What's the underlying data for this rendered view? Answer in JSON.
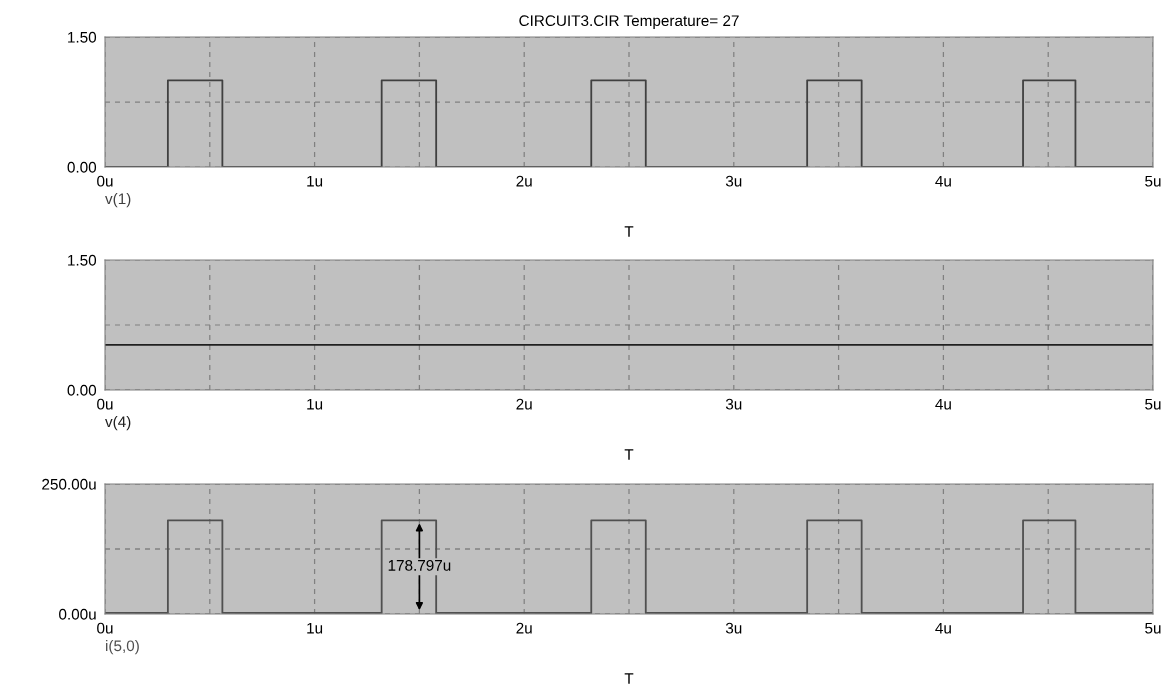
{
  "chart_data": [
    {
      "type": "step",
      "title": "CIRCUIT3.CIR Temperature= 27",
      "xlabel": "T",
      "xlim": [
        0,
        5
      ],
      "ylim": [
        0,
        1.5
      ],
      "xticks": [
        {
          "value": 0,
          "label": "0u"
        },
        {
          "value": 0.5,
          "label": null
        },
        {
          "value": 1,
          "label": "1u"
        },
        {
          "value": 1.5,
          "label": null
        },
        {
          "value": 2,
          "label": "2u"
        },
        {
          "value": 2.5,
          "label": null
        },
        {
          "value": 3,
          "label": "3u"
        },
        {
          "value": 3.5,
          "label": null
        },
        {
          "value": 4,
          "label": "4u"
        },
        {
          "value": 4.5,
          "label": null
        },
        {
          "value": 5,
          "label": "5u"
        }
      ],
      "yticks": [
        {
          "value": 0,
          "label": "0.00"
        },
        {
          "value": 0.75,
          "label": null
        },
        {
          "value": 1.5,
          "label": "1.50"
        }
      ],
      "grid": true,
      "series": [
        {
          "color": "#404040",
          "name": "v(1)",
          "x": [
            0,
            0.3,
            0.56,
            1.32,
            1.58,
            2.32,
            2.58,
            3.35,
            3.61,
            4.38,
            4.63,
            5
          ],
          "values": [
            0,
            1.0,
            0,
            1.0,
            0,
            1.0,
            0,
            1.0,
            0,
            1.0,
            0,
            0
          ]
        }
      ],
      "legend": "bottom left"
    },
    {
      "type": "line",
      "xlabel": "T",
      "xlim": [
        0,
        5
      ],
      "ylim": [
        0,
        1.5
      ],
      "xticks": [
        {
          "value": 0,
          "label": "0u"
        },
        {
          "value": 0.5,
          "label": null
        },
        {
          "value": 1,
          "label": "1u"
        },
        {
          "value": 1.5,
          "label": null
        },
        {
          "value": 2,
          "label": "2u"
        },
        {
          "value": 2.5,
          "label": null
        },
        {
          "value": 3,
          "label": "3u"
        },
        {
          "value": 3.5,
          "label": null
        },
        {
          "value": 4,
          "label": "4u"
        },
        {
          "value": 4.5,
          "label": null
        },
        {
          "value": 5,
          "label": "5u"
        }
      ],
      "yticks": [
        {
          "value": 0,
          "label": "0.00"
        },
        {
          "value": 0.75,
          "label": null
        },
        {
          "value": 1.5,
          "label": "1.50"
        }
      ],
      "grid": true,
      "series": [
        {
          "color": "#202020",
          "name": "v(4)",
          "x": [
            0,
            5
          ],
          "values": [
            0.52,
            0.52
          ]
        }
      ],
      "legend": "bottom left"
    },
    {
      "type": "step",
      "xlabel": "T",
      "xlim": [
        0,
        5
      ],
      "ylim": [
        0,
        250
      ],
      "xticks": [
        {
          "value": 0,
          "label": "0u"
        },
        {
          "value": 0.5,
          "label": null
        },
        {
          "value": 1,
          "label": "1u"
        },
        {
          "value": 1.5,
          "label": null
        },
        {
          "value": 2,
          "label": "2u"
        },
        {
          "value": 2.5,
          "label": null
        },
        {
          "value": 3,
          "label": "3u"
        },
        {
          "value": 3.5,
          "label": null
        },
        {
          "value": 4,
          "label": "4u"
        },
        {
          "value": 4.5,
          "label": null
        },
        {
          "value": 5,
          "label": "5u"
        }
      ],
      "yticks": [
        {
          "value": 0,
          "label": "0.00u"
        },
        {
          "value": 125,
          "label": null
        },
        {
          "value": 250,
          "label": "250.00u"
        }
      ],
      "grid": true,
      "series": [
        {
          "color": "#505050",
          "x": [
            0,
            0.3,
            0.56,
            1.32,
            1.58,
            2.32,
            2.58,
            3.35,
            3.61,
            4.38,
            4.63,
            5
          ],
          "values": [
            2,
            180,
            2,
            180,
            2,
            180,
            2,
            180,
            2,
            180,
            2,
            2
          ],
          "name": "i(5,0)"
        }
      ],
      "legend": "bottom left",
      "annotations": [
        {
          "text": "178.797u",
          "x": 1.5,
          "y": 180
        }
      ]
    }
  ]
}
